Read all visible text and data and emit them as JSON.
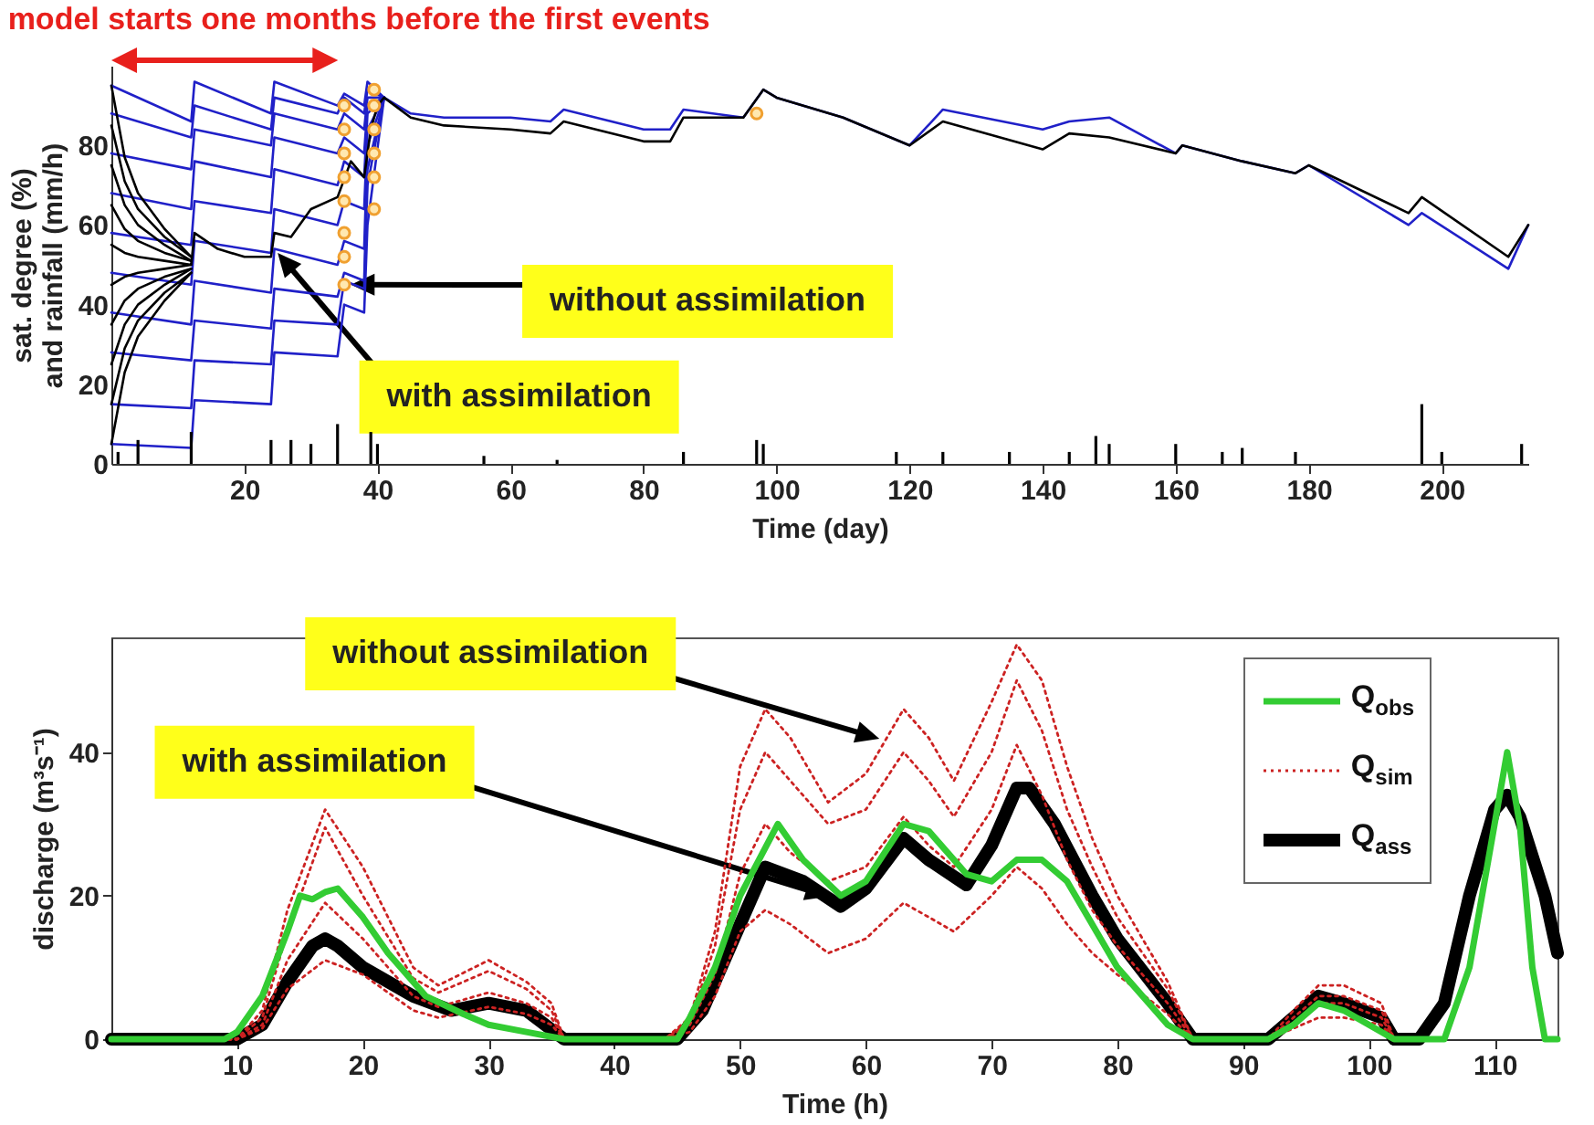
{
  "chart_data": [
    {
      "type": "line",
      "title": "model starts one months before the first events",
      "xlabel": "Time (day)",
      "ylabel": "sat. degree (%)\nand rainfall (mm/h)",
      "xlim": [
        0,
        213
      ],
      "xticks": [
        20,
        40,
        60,
        80,
        100,
        120,
        140,
        160,
        180,
        200
      ],
      "ylim": [
        0,
        100
      ],
      "yticks": [
        0,
        20,
        40,
        60,
        80
      ],
      "annotations": [
        {
          "text": "without assimilation",
          "x": 36,
          "y": 45
        },
        {
          "text": "with assimilation",
          "x": 25,
          "y": 53
        }
      ],
      "series": [
        {
          "color": "#2020c8",
          "x": [
            0,
            12,
            12.5,
            24,
            24.5,
            34,
            35,
            38,
            38.5,
            41,
            45,
            50,
            60,
            66,
            68,
            80,
            84,
            86,
            95,
            98,
            100,
            110,
            120,
            125,
            140,
            144,
            150,
            160,
            161,
            170,
            178,
            180,
            195,
            197,
            210,
            213
          ],
          "values": [
            95,
            86,
            96,
            88,
            96,
            90,
            93,
            90,
            96,
            92,
            88,
            87,
            87,
            86,
            89,
            84,
            84,
            89,
            87,
            94,
            92,
            87,
            80,
            89,
            84,
            86,
            87,
            78,
            80,
            76,
            73,
            75,
            60,
            63,
            49,
            60
          ]
        },
        {
          "color": "#2020c8",
          "x": [
            0,
            12,
            12.5,
            24,
            24.5,
            34,
            35,
            38,
            38.5,
            41
          ],
          "values": [
            88,
            82,
            90,
            84,
            92,
            88,
            92,
            88,
            94,
            92
          ]
        },
        {
          "color": "#2020c8",
          "x": [
            0,
            12,
            12.5,
            24,
            24.5,
            34,
            35,
            38,
            38.5,
            41
          ],
          "values": [
            78,
            74,
            84,
            80,
            88,
            84,
            88,
            84,
            92,
            92
          ]
        },
        {
          "color": "#2020c8",
          "x": [
            0,
            12,
            12.5,
            24,
            24.5,
            34,
            35,
            38,
            38.5,
            41
          ],
          "values": [
            68,
            64,
            76,
            72,
            82,
            78,
            82,
            78,
            90,
            92
          ]
        },
        {
          "color": "#2020c8",
          "x": [
            0,
            12,
            12.5,
            24,
            24.5,
            34,
            35,
            38,
            38.5,
            41
          ],
          "values": [
            58,
            55,
            66,
            63,
            74,
            70,
            76,
            72,
            88,
            92
          ]
        },
        {
          "color": "#2020c8",
          "x": [
            0,
            12,
            12.5,
            24,
            24.5,
            34,
            35,
            38,
            38.5,
            41
          ],
          "values": [
            48,
            45,
            56,
            53,
            64,
            60,
            66,
            64,
            84,
            92
          ]
        },
        {
          "color": "#2020c8",
          "x": [
            0,
            12,
            12.5,
            24,
            24.5,
            34,
            35,
            38,
            38.5,
            41
          ],
          "values": [
            38,
            35,
            46,
            43,
            54,
            50,
            56,
            54,
            80,
            92
          ]
        },
        {
          "color": "#2020c8",
          "x": [
            0,
            12,
            12.5,
            24,
            24.5,
            34,
            35,
            38,
            38.5,
            41
          ],
          "values": [
            28,
            26,
            36,
            34,
            44,
            42,
            48,
            46,
            74,
            92
          ]
        },
        {
          "color": "#2020c8",
          "x": [
            0,
            12,
            12.5,
            24,
            24.5,
            34,
            35,
            38,
            38.5,
            41
          ],
          "values": [
            15,
            14,
            26,
            25,
            36,
            35,
            46,
            44,
            70,
            92
          ]
        },
        {
          "color": "#2020c8",
          "x": [
            0,
            12,
            12.5,
            24,
            24.5,
            34,
            35,
            38,
            38.5,
            41
          ],
          "values": [
            5,
            4,
            16,
            15,
            28,
            27,
            40,
            38,
            60,
            92
          ]
        },
        {
          "color": "#000000",
          "x": [
            0,
            2,
            4,
            8,
            12
          ],
          "values": [
            95,
            77,
            68,
            59,
            52
          ]
        },
        {
          "color": "#000000",
          "x": [
            0,
            2,
            4,
            8,
            12
          ],
          "values": [
            85,
            71,
            64,
            57,
            52
          ]
        },
        {
          "color": "#000000",
          "x": [
            0,
            2,
            4,
            8,
            12
          ],
          "values": [
            75,
            65,
            60,
            55,
            51
          ]
        },
        {
          "color": "#000000",
          "x": [
            0,
            2,
            4,
            8,
            12
          ],
          "values": [
            65,
            59,
            56,
            53,
            51
          ]
        },
        {
          "color": "#000000",
          "x": [
            0,
            2,
            4,
            8,
            12,
            12.5,
            16,
            20,
            24,
            24.5,
            27,
            30,
            34,
            36,
            38,
            39,
            40,
            41,
            45,
            50,
            60,
            66,
            68,
            80,
            84,
            86,
            95,
            98,
            100,
            110,
            120,
            125,
            140,
            144,
            150,
            160,
            161,
            170,
            178,
            180,
            195,
            197,
            210,
            213
          ],
          "values": [
            55,
            53,
            52,
            51,
            50,
            58,
            54,
            52,
            52,
            58,
            57,
            64,
            67,
            76,
            72,
            84,
            90,
            92,
            87,
            85,
            84,
            83,
            86,
            81,
            81,
            87,
            87,
            94,
            92,
            87,
            80,
            86,
            79,
            83,
            82,
            78,
            80,
            76,
            73,
            75,
            63,
            67,
            52,
            60
          ]
        },
        {
          "color": "#000000",
          "x": [
            0,
            2,
            4,
            8,
            12
          ],
          "values": [
            45,
            47,
            48,
            49,
            50
          ]
        },
        {
          "color": "#000000",
          "x": [
            0,
            2,
            4,
            8,
            12
          ],
          "values": [
            35,
            41,
            44,
            47,
            49
          ]
        },
        {
          "color": "#000000",
          "x": [
            0,
            2,
            4,
            8,
            12
          ],
          "values": [
            25,
            35,
            40,
            45,
            49
          ]
        },
        {
          "color": "#000000",
          "x": [
            0,
            2,
            4,
            8,
            12
          ],
          "values": [
            15,
            29,
            36,
            43,
            48
          ]
        },
        {
          "color": "#000000",
          "x": [
            0,
            2,
            4,
            8,
            12
          ],
          "values": [
            5,
            23,
            32,
            41,
            48
          ]
        },
        {
          "type": "scatter",
          "marker": "circle",
          "color": "#f0a030",
          "x": [
            35,
            35,
            35,
            35,
            35,
            35,
            35,
            35,
            39.5,
            39.5,
            39.5,
            39.5,
            39.5,
            39.5,
            97
          ],
          "values": [
            90,
            84,
            78,
            72,
            66,
            58,
            52,
            45,
            94,
            90,
            84,
            78,
            72,
            64,
            88
          ]
        },
        {
          "type": "bar",
          "color": "#000000",
          "x": [
            1,
            4,
            12,
            24,
            27,
            30,
            34,
            39,
            40,
            56,
            67,
            86,
            97,
            98,
            118,
            125,
            135,
            144,
            148,
            150,
            160,
            167,
            170,
            178,
            197,
            200,
            212
          ],
          "values": [
            3,
            6,
            8,
            6,
            6,
            5,
            10,
            8,
            5,
            2,
            1,
            3,
            6,
            5,
            3,
            3,
            3,
            3,
            7,
            5,
            5,
            3,
            4,
            3,
            15,
            3,
            5
          ]
        }
      ]
    },
    {
      "type": "line",
      "xlabel": "Time (h)",
      "ylabel": "discharge (m³s⁻¹)",
      "xlim": [
        0,
        115
      ],
      "xticks": [
        10,
        20,
        30,
        40,
        50,
        60,
        70,
        80,
        90,
        100,
        110
      ],
      "ylim": [
        0,
        56
      ],
      "yticks": [
        0,
        20,
        40
      ],
      "legend": "top right",
      "annotations": [
        {
          "text": "without assimilation",
          "x": 61,
          "y": 42
        },
        {
          "text": "with assimilation",
          "x": 57,
          "y": 20
        }
      ],
      "series": [
        {
          "name": "Q$_{obs}$",
          "color": "#33cc33",
          "line_style": "solid",
          "x": [
            0,
            9,
            10,
            12,
            14,
            15,
            16,
            17,
            18,
            20,
            22,
            25,
            28,
            30,
            33,
            36,
            45,
            46,
            48,
            50,
            53,
            55,
            58,
            60,
            63,
            65,
            68,
            70,
            72,
            74,
            76,
            78,
            80,
            84,
            86,
            92,
            94,
            96,
            98,
            100,
            102,
            106,
            108,
            110,
            111,
            112,
            113,
            114,
            115
          ],
          "values": [
            0,
            0,
            1,
            6,
            15,
            20,
            19.5,
            20.5,
            21,
            17,
            12,
            6,
            3.5,
            2,
            1,
            0,
            0,
            3,
            10,
            20,
            30,
            25,
            20,
            22,
            30,
            29,
            23,
            22,
            25,
            25,
            22,
            16,
            10,
            2,
            0,
            0,
            2,
            5,
            4,
            2,
            0,
            0,
            10,
            30,
            40,
            30,
            10,
            0,
            0
          ]
        },
        {
          "name": "Q$_{sim}$",
          "color": "#cc2222",
          "line_style": "dotted",
          "x": [
            0,
            10,
            12,
            14,
            17,
            20,
            24,
            26,
            30,
            33,
            35,
            36,
            44,
            46,
            48,
            50,
            52,
            54,
            57,
            60,
            63,
            65,
            67,
            70,
            72,
            74,
            76,
            78,
            80,
            84,
            86,
            92,
            94,
            96,
            98,
            101,
            102,
            104
          ],
          "values": [
            0,
            0,
            4,
            18,
            32,
            24,
            10,
            7.5,
            11,
            8,
            5,
            0,
            0,
            3,
            15,
            38,
            46,
            42,
            33,
            37,
            46,
            42,
            36,
            47,
            55,
            50,
            38,
            28,
            20,
            8,
            0,
            0,
            4,
            7.5,
            7.5,
            5,
            0,
            0
          ]
        },
        {
          "color": "#cc2222",
          "line_style": "dotted",
          "x": [
            0,
            10,
            12,
            14,
            17,
            20,
            24,
            26,
            30,
            33,
            35,
            36,
            44,
            46,
            48,
            50,
            52,
            54,
            57,
            60,
            63,
            65,
            67,
            70,
            72,
            74,
            76,
            78,
            80,
            84,
            86,
            92,
            94,
            96,
            98,
            101,
            102,
            104
          ],
          "values": [
            0,
            0,
            3,
            15,
            29.5,
            20,
            8.5,
            6.5,
            9.5,
            7,
            4,
            0,
            0,
            2.5,
            13,
            32,
            40,
            36,
            30,
            32,
            40,
            36,
            31,
            40,
            50,
            43,
            32,
            24,
            17,
            7,
            0,
            0,
            3,
            6,
            6,
            4,
            0,
            0
          ]
        },
        {
          "color": "#cc2222",
          "line_style": "dotted",
          "x": [
            0,
            10,
            12,
            14,
            17,
            20,
            24,
            26,
            30,
            33,
            35,
            36,
            44,
            46,
            48,
            50,
            52,
            54,
            57,
            60,
            63,
            65,
            67,
            70,
            72,
            74,
            76,
            78,
            80,
            84,
            86,
            92,
            94,
            96,
            98,
            101,
            102,
            104
          ],
          "values": [
            0,
            0,
            2,
            11,
            19,
            14,
            6,
            4.5,
            6.5,
            5,
            3,
            0,
            0,
            2,
            9,
            23,
            30,
            26,
            22,
            24,
            31,
            27,
            24,
            32,
            41,
            34,
            25,
            18,
            13,
            5,
            0,
            0,
            2,
            5,
            5,
            3,
            0,
            0
          ]
        },
        {
          "color": "#cc2222",
          "line_style": "dotted",
          "x": [
            0,
            10,
            12,
            14,
            17,
            20,
            24,
            26,
            30,
            33,
            35,
            36,
            44,
            46,
            48,
            50,
            52,
            54,
            57,
            60,
            63,
            65,
            67,
            70,
            72,
            74,
            76,
            78,
            80,
            84,
            86,
            92,
            94,
            96,
            98,
            101,
            102,
            104
          ],
          "values": [
            0,
            0,
            1.5,
            7,
            11,
            9,
            4,
            3,
            4.5,
            3.5,
            2,
            0,
            0,
            1,
            6,
            15,
            18,
            16,
            12,
            14,
            19,
            17,
            15,
            20,
            24,
            21,
            16,
            12,
            9,
            3.5,
            0,
            0,
            1.5,
            3,
            3,
            2,
            0,
            0
          ]
        },
        {
          "name": "Q$_{ass}$",
          "color": "#000000",
          "line_style": "solid",
          "x": [
            0,
            10,
            12,
            14,
            16,
            17,
            18,
            20,
            24,
            27,
            30,
            33,
            36,
            45,
            47,
            50,
            52,
            55,
            58,
            60,
            63,
            65,
            68,
            70,
            72,
            73,
            75,
            78,
            80,
            84,
            86,
            92,
            94,
            96,
            98,
            101,
            102,
            104,
            106,
            108,
            110,
            111,
            112,
            114,
            115
          ],
          "values": [
            0,
            0,
            2,
            8,
            13,
            14,
            13,
            10,
            6,
            4,
            5,
            4,
            0,
            0,
            4,
            16,
            24,
            22,
            18.5,
            21,
            28,
            25,
            21.5,
            27,
            35,
            35,
            30,
            20,
            14,
            5,
            0,
            0,
            3,
            6,
            5,
            3,
            0,
            0,
            5,
            20,
            32,
            34,
            31,
            20,
            12
          ]
        }
      ]
    }
  ]
}
